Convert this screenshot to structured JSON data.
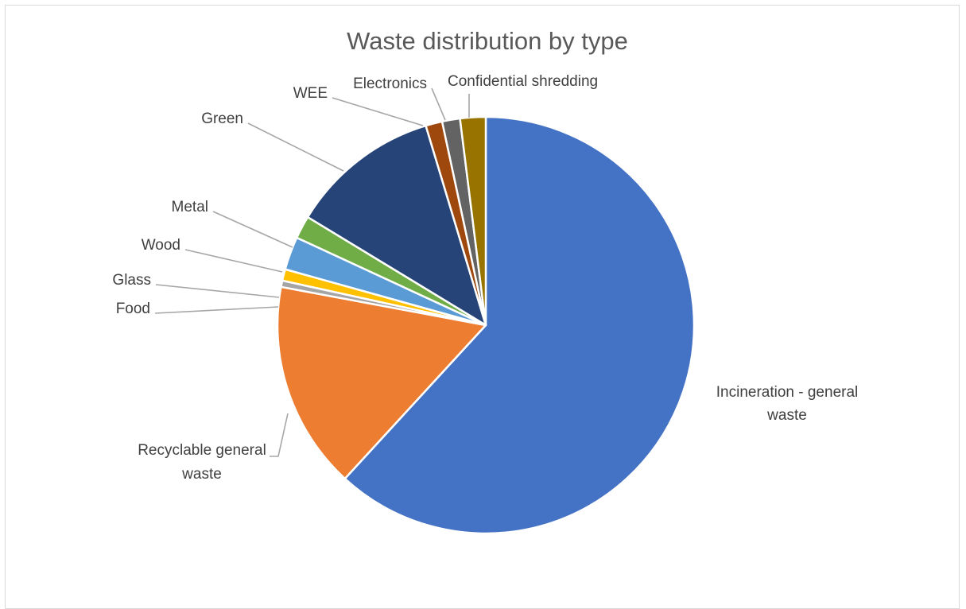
{
  "chart_data": {
    "type": "pie",
    "title": "Waste distribution by type",
    "start_angle_deg": 0,
    "direction": "clockwise",
    "legend": "none",
    "slices": [
      {
        "label": "Incineration - general waste",
        "value": 62.5,
        "color": "#4472C4"
      },
      {
        "label": "Recyclable general waste",
        "value": 16.3,
        "color": "#ED7D31"
      },
      {
        "label": "Food",
        "value": 0.5,
        "color": "#A5A5A5"
      },
      {
        "label": "Glass",
        "value": 0.9,
        "color": "#FFC000"
      },
      {
        "label": "Wood",
        "value": 2.6,
        "color": "#5B9BD5"
      },
      {
        "label": "Metal",
        "value": 1.8,
        "color": "#70AD47"
      },
      {
        "label": "Green",
        "value": 11.8,
        "color": "#264478"
      },
      {
        "label": "WEE",
        "value": 1.3,
        "color": "#9E480E"
      },
      {
        "label": "Electronics",
        "value": 1.4,
        "color": "#636363"
      },
      {
        "label": "Confidential shredding",
        "value": 2.0,
        "color": "#997300"
      }
    ]
  }
}
